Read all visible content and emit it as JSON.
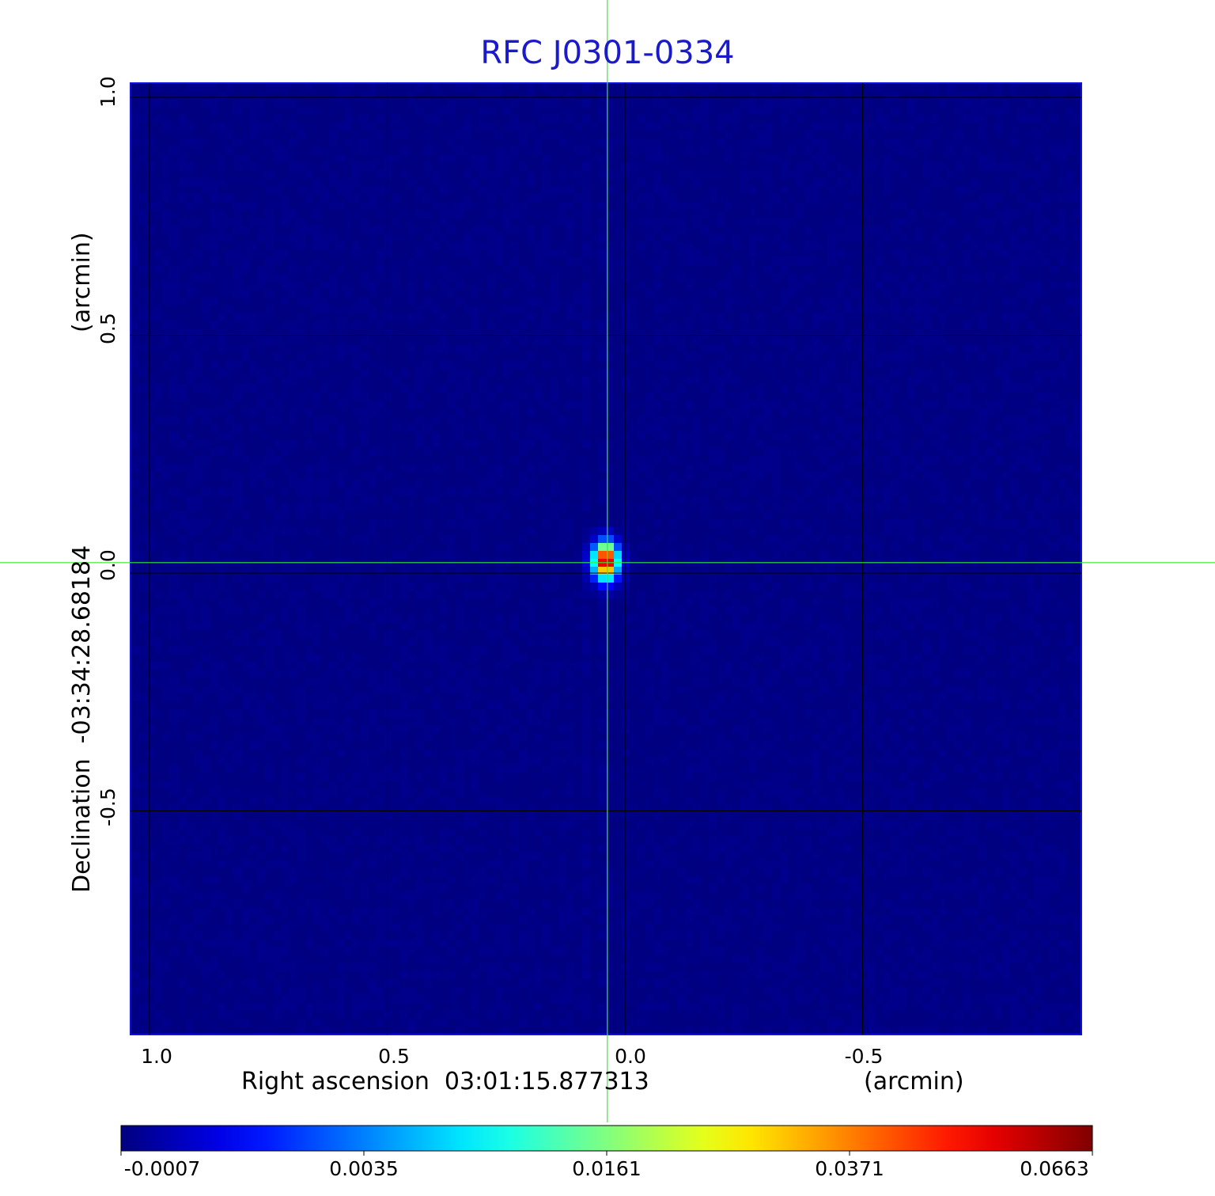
{
  "title": "RFC J0301-0334",
  "xaxis": {
    "label": "Right ascension  03:01:15.877313",
    "unit": "(arcmin)",
    "ticks": [
      "1.0",
      "0.5",
      "0.0",
      "-0.5"
    ],
    "tick_values": [
      1.0,
      0.5,
      0.0,
      -0.5
    ]
  },
  "yaxis": {
    "label": "Declination  -03:34:28.68184",
    "unit": "(arcmin)",
    "ticks": [
      "1.0",
      "0.5",
      "0.0",
      "-0.5"
    ],
    "tick_values": [
      1.0,
      0.5,
      0.0,
      -0.5
    ]
  },
  "colorbar": {
    "colormap": "jet",
    "ticks": [
      "-0.0007",
      "0.0035",
      "0.0161",
      "0.0371",
      "0.0663"
    ],
    "tick_values": [
      -0.0007,
      0.0035,
      0.0161,
      0.0371,
      0.0663
    ]
  },
  "chart_data": {
    "type": "heatmap",
    "title": "RFC J0301-0334",
    "xlabel": "Right ascension  03:01:15.877313",
    "ylabel": "Declination  -03:34:28.68184",
    "unit": "(arcmin)",
    "xlim": [
      1.04,
      -0.96
    ],
    "ylim": [
      -0.97,
      1.03
    ],
    "grid": true,
    "crosshair": {
      "x": 0.037,
      "y": 0.022,
      "color": "#33ee33"
    },
    "source": {
      "x": 0.04,
      "y": 0.025,
      "peak": 0.0663
    },
    "background_level": -0.0004,
    "colorbar_range": [
      -0.0007,
      0.0663
    ]
  }
}
